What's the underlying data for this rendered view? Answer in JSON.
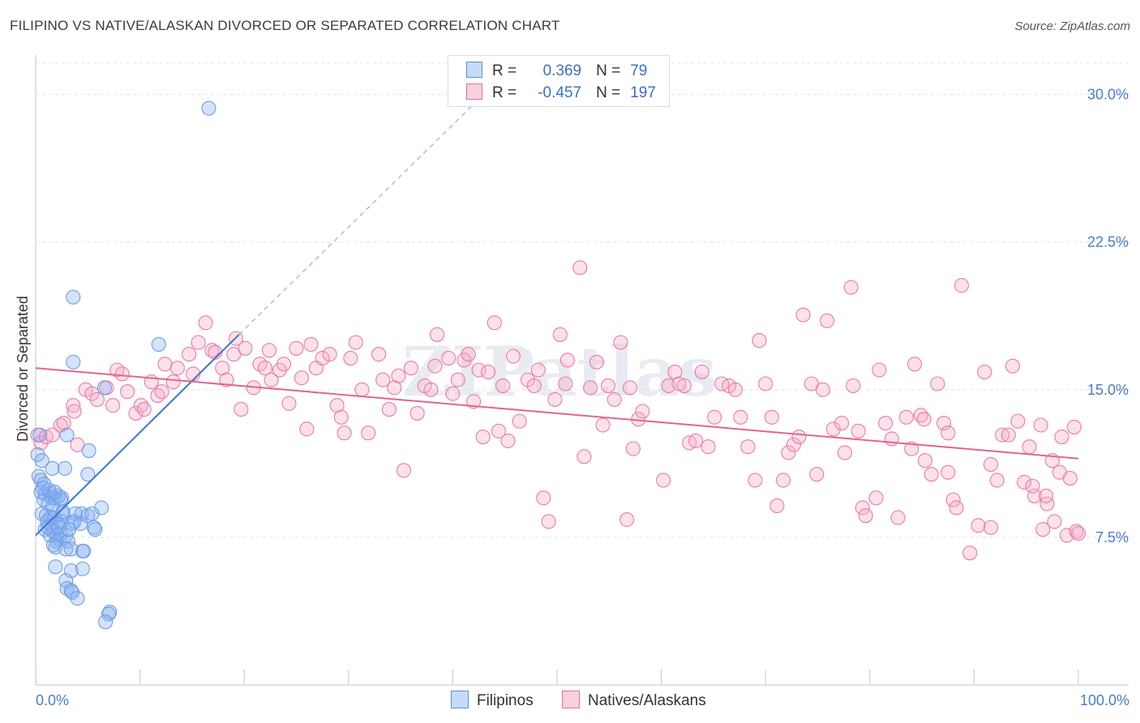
{
  "title": "FILIPINO VS NATIVE/ALASKAN DIVORCED OR SEPARATED CORRELATION CHART",
  "source": "Source: ZipAtlas.com",
  "watermark": "ZIPatlas",
  "legend": {
    "rows": [
      {
        "r_label": "R =",
        "r_value": "0.369",
        "n_label": "N =",
        "n_value": "79",
        "color": "#a9c8f5",
        "border": "#5b8fe0"
      },
      {
        "r_label": "R =",
        "r_value": "-0.457",
        "n_label": "N =",
        "n_value": "197",
        "color": "#f7bcd0",
        "border": "#e46d98"
      }
    ]
  },
  "bottom_legend": [
    {
      "label": "Filipinos",
      "color": "#a9c8f5",
      "border": "#5b8fe0"
    },
    {
      "label": "Natives/Alaskans",
      "color": "#f7bcd0",
      "border": "#e46d98"
    }
  ],
  "chart_data": {
    "type": "scatter",
    "title": "FILIPINO VS NATIVE/ALASKAN DIVORCED OR SEPARATED CORRELATION CHART",
    "xlabel": "",
    "ylabel": "Divorced or Separated",
    "xlim": [
      0,
      100
    ],
    "ylim": [
      0,
      32
    ],
    "x_tick_labels": [
      "0.0%",
      "100.0%"
    ],
    "y_ticks": [
      7.5,
      15.0,
      22.5,
      30.0
    ],
    "y_tick_labels": [
      "7.5%",
      "15.0%",
      "22.5%",
      "30.0%"
    ],
    "grid": true,
    "legend_position": "top-center",
    "series": [
      {
        "name": "Filipinos",
        "color": "#6f9ee8",
        "fill": "rgba(135,176,240,0.35)",
        "trend": {
          "x": [
            0,
            19.5
          ],
          "y": [
            7.6,
            17.8
          ],
          "dashed_to": [
            42,
            29.5
          ]
        },
        "points": [
          [
            16.6,
            29.3
          ],
          [
            3.6,
            19.7
          ],
          [
            3.6,
            16.4
          ],
          [
            11.8,
            17.3
          ],
          [
            6.6,
            15.1
          ],
          [
            0.4,
            12.7
          ],
          [
            3.0,
            12.7
          ],
          [
            5.1,
            11.9
          ],
          [
            0.2,
            11.7
          ],
          [
            0.6,
            11.4
          ],
          [
            1.6,
            11.0
          ],
          [
            2.8,
            11.0
          ],
          [
            0.3,
            10.6
          ],
          [
            0.5,
            10.4
          ],
          [
            5.0,
            10.7
          ],
          [
            0.8,
            10.2
          ],
          [
            0.5,
            9.8
          ],
          [
            0.9,
            9.7
          ],
          [
            1.4,
            9.7
          ],
          [
            0.8,
            9.4
          ],
          [
            1.6,
            9.5
          ],
          [
            1.9,
            9.5
          ],
          [
            2.2,
            9.6
          ],
          [
            2.5,
            9.5
          ],
          [
            2.4,
            9.4
          ],
          [
            1.2,
            9.2
          ],
          [
            1.6,
            9.0
          ],
          [
            6.3,
            9.0
          ],
          [
            0.6,
            8.7
          ],
          [
            1.0,
            8.6
          ],
          [
            1.4,
            8.5
          ],
          [
            1.8,
            8.5
          ],
          [
            2.6,
            8.7
          ],
          [
            3.8,
            8.7
          ],
          [
            4.4,
            8.7
          ],
          [
            5.0,
            8.6
          ],
          [
            5.4,
            8.7
          ],
          [
            2.1,
            8.2
          ],
          [
            2.5,
            8.3
          ],
          [
            3.5,
            8.2
          ],
          [
            1.1,
            8.3
          ],
          [
            1.5,
            8.1
          ],
          [
            0.9,
            7.9
          ],
          [
            1.7,
            7.8
          ],
          [
            1.4,
            7.6
          ],
          [
            2.0,
            7.6
          ],
          [
            2.4,
            7.7
          ],
          [
            2.3,
            7.4
          ],
          [
            2.0,
            7.3
          ],
          [
            2.9,
            7.6
          ],
          [
            3.1,
            7.3
          ],
          [
            3.7,
            8.3
          ],
          [
            4.3,
            8.2
          ],
          [
            5.6,
            8.0
          ],
          [
            5.7,
            7.9
          ],
          [
            1.7,
            7.1
          ],
          [
            1.9,
            7.0
          ],
          [
            2.9,
            6.9
          ],
          [
            4.5,
            6.8
          ],
          [
            4.6,
            6.8
          ],
          [
            3.4,
            6.9
          ],
          [
            1.9,
            6.0
          ],
          [
            3.4,
            5.8
          ],
          [
            4.5,
            5.9
          ],
          [
            2.9,
            5.3
          ],
          [
            3.0,
            4.9
          ],
          [
            3.4,
            4.8
          ],
          [
            4.0,
            4.4
          ],
          [
            3.5,
            4.7
          ],
          [
            7.1,
            3.7
          ],
          [
            7.0,
            3.6
          ],
          [
            6.7,
            3.2
          ],
          [
            1.3,
            9.9
          ],
          [
            2.6,
            8.8
          ],
          [
            0.7,
            10.0
          ],
          [
            1.2,
            8.0
          ],
          [
            2.2,
            8.0
          ],
          [
            3.2,
            7.9
          ],
          [
            1.8,
            9.8
          ]
        ]
      },
      {
        "name": "Natives/Alaskans",
        "color": "#ec7aa2",
        "fill": "rgba(247,170,198,0.35)",
        "trend": {
          "x": [
            0,
            100
          ],
          "y": [
            16.1,
            11.5
          ]
        },
        "points": [
          [
            0.2,
            12.7
          ],
          [
            0.5,
            12.3
          ],
          [
            1.0,
            12.6
          ],
          [
            1.6,
            12.7
          ],
          [
            2.4,
            13.2
          ],
          [
            2.7,
            13.3
          ],
          [
            3.6,
            14.2
          ],
          [
            3.7,
            13.9
          ],
          [
            4.8,
            15.0
          ],
          [
            5.4,
            14.8
          ],
          [
            5.9,
            14.5
          ],
          [
            4.0,
            12.2
          ],
          [
            6.8,
            15.1
          ],
          [
            7.4,
            14.2
          ],
          [
            7.8,
            16.0
          ],
          [
            8.3,
            15.8
          ],
          [
            8.8,
            14.9
          ],
          [
            9.6,
            13.8
          ],
          [
            10.1,
            14.2
          ],
          [
            10.4,
            14.0
          ],
          [
            11.1,
            15.4
          ],
          [
            11.7,
            14.7
          ],
          [
            12.1,
            14.9
          ],
          [
            12.4,
            16.3
          ],
          [
            13.2,
            15.4
          ],
          [
            13.6,
            16.1
          ],
          [
            14.7,
            16.8
          ],
          [
            15.1,
            15.8
          ],
          [
            15.6,
            17.4
          ],
          [
            16.3,
            18.4
          ],
          [
            16.9,
            17.0
          ],
          [
            17.2,
            16.9
          ],
          [
            17.9,
            16.1
          ],
          [
            18.3,
            15.5
          ],
          [
            19.2,
            17.6
          ],
          [
            19.7,
            14.0
          ],
          [
            19.0,
            16.8
          ],
          [
            20.1,
            17.1
          ],
          [
            20.9,
            15.1
          ],
          [
            21.5,
            16.3
          ],
          [
            22.0,
            16.1
          ],
          [
            22.6,
            15.5
          ],
          [
            22.4,
            17.0
          ],
          [
            23.4,
            16.0
          ],
          [
            23.8,
            16.3
          ],
          [
            24.3,
            14.3
          ],
          [
            25.0,
            17.1
          ],
          [
            25.5,
            15.6
          ],
          [
            26.0,
            13.0
          ],
          [
            26.4,
            17.3
          ],
          [
            26.9,
            16.1
          ],
          [
            27.5,
            16.6
          ],
          [
            28.2,
            16.8
          ],
          [
            28.9,
            14.2
          ],
          [
            29.3,
            13.6
          ],
          [
            29.6,
            12.8
          ],
          [
            30.2,
            16.6
          ],
          [
            30.7,
            17.4
          ],
          [
            31.3,
            15.0
          ],
          [
            31.9,
            12.8
          ],
          [
            32.9,
            16.8
          ],
          [
            33.3,
            15.5
          ],
          [
            33.9,
            14.0
          ],
          [
            34.4,
            15.1
          ],
          [
            34.8,
            15.7
          ],
          [
            35.3,
            10.9
          ],
          [
            36.0,
            16.1
          ],
          [
            36.6,
            13.8
          ],
          [
            37.3,
            15.2
          ],
          [
            37.9,
            15.0
          ],
          [
            38.3,
            16.2
          ],
          [
            38.5,
            17.8
          ],
          [
            39.6,
            16.6
          ],
          [
            40.0,
            14.8
          ],
          [
            40.5,
            15.5
          ],
          [
            41.1,
            16.5
          ],
          [
            41.5,
            16.8
          ],
          [
            42.0,
            14.4
          ],
          [
            42.5,
            16.0
          ],
          [
            42.9,
            12.6
          ],
          [
            43.4,
            15.9
          ],
          [
            44.0,
            18.4
          ],
          [
            44.4,
            12.9
          ],
          [
            44.8,
            15.2
          ],
          [
            45.3,
            12.4
          ],
          [
            45.8,
            16.7
          ],
          [
            46.4,
            13.4
          ],
          [
            47.2,
            15.5
          ],
          [
            47.8,
            15.2
          ],
          [
            48.2,
            16.0
          ],
          [
            48.7,
            9.5
          ],
          [
            49.2,
            8.3
          ],
          [
            49.8,
            14.5
          ],
          [
            50.3,
            17.8
          ],
          [
            50.8,
            15.3
          ],
          [
            51.0,
            16.5
          ],
          [
            52.2,
            21.2
          ],
          [
            52.6,
            11.6
          ],
          [
            53.2,
            15.1
          ],
          [
            53.8,
            16.4
          ],
          [
            54.4,
            13.2
          ],
          [
            54.9,
            15.2
          ],
          [
            55.5,
            14.5
          ],
          [
            56.1,
            17.4
          ],
          [
            56.7,
            8.4
          ],
          [
            57.0,
            15.1
          ],
          [
            57.3,
            12.0
          ],
          [
            57.8,
            13.5
          ],
          [
            58.2,
            13.9
          ],
          [
            60.2,
            10.4
          ],
          [
            60.7,
            15.2
          ],
          [
            61.3,
            15.9
          ],
          [
            61.7,
            15.3
          ],
          [
            62.2,
            15.2
          ],
          [
            62.7,
            12.3
          ],
          [
            63.3,
            12.4
          ],
          [
            63.9,
            15.9
          ],
          [
            64.5,
            12.1
          ],
          [
            65.1,
            13.6
          ],
          [
            65.8,
            15.3
          ],
          [
            66.5,
            15.2
          ],
          [
            67.1,
            15.0
          ],
          [
            67.6,
            13.6
          ],
          [
            68.3,
            12.1
          ],
          [
            69.0,
            10.4
          ],
          [
            69.4,
            17.5
          ],
          [
            70.0,
            15.3
          ],
          [
            70.6,
            13.6
          ],
          [
            71.1,
            9.1
          ],
          [
            71.7,
            10.4
          ],
          [
            72.2,
            11.8
          ],
          [
            72.7,
            12.2
          ],
          [
            73.2,
            12.6
          ],
          [
            73.6,
            18.8
          ],
          [
            74.4,
            15.3
          ],
          [
            74.9,
            10.7
          ],
          [
            75.5,
            15.0
          ],
          [
            75.9,
            18.5
          ],
          [
            76.5,
            13.0
          ],
          [
            77.3,
            13.3
          ],
          [
            77.6,
            11.8
          ],
          [
            78.2,
            20.2
          ],
          [
            78.4,
            15.2
          ],
          [
            78.9,
            12.9
          ],
          [
            79.3,
            9.0
          ],
          [
            79.6,
            8.6
          ],
          [
            80.6,
            9.5
          ],
          [
            80.9,
            16.0
          ],
          [
            81.5,
            13.3
          ],
          [
            82.1,
            12.5
          ],
          [
            82.7,
            8.5
          ],
          [
            83.5,
            13.6
          ],
          [
            84.3,
            16.3
          ],
          [
            84.9,
            13.7
          ],
          [
            85.3,
            11.4
          ],
          [
            85.9,
            10.7
          ],
          [
            86.5,
            15.3
          ],
          [
            87.1,
            13.3
          ],
          [
            87.5,
            12.8
          ],
          [
            88.0,
            9.4
          ],
          [
            88.8,
            20.3
          ],
          [
            89.6,
            6.7
          ],
          [
            90.4,
            8.1
          ],
          [
            91.0,
            15.9
          ],
          [
            91.6,
            11.2
          ],
          [
            92.2,
            10.4
          ],
          [
            92.7,
            12.7
          ],
          [
            93.3,
            12.7
          ],
          [
            93.7,
            16.2
          ],
          [
            94.2,
            13.4
          ],
          [
            94.8,
            10.3
          ],
          [
            95.3,
            12.1
          ],
          [
            95.8,
            9.6
          ],
          [
            96.4,
            13.2
          ],
          [
            97.0,
            9.2
          ],
          [
            97.5,
            11.4
          ],
          [
            97.7,
            8.3
          ],
          [
            98.4,
            12.6
          ],
          [
            98.9,
            7.6
          ],
          [
            99.6,
            13.1
          ],
          [
            99.8,
            7.8
          ],
          [
            100.0,
            7.7
          ],
          [
            87.5,
            10.8
          ],
          [
            88.3,
            9.0
          ],
          [
            85.2,
            13.5
          ],
          [
            84.0,
            12.0
          ],
          [
            91.6,
            8.0
          ],
          [
            95.6,
            10.1
          ],
          [
            96.6,
            7.9
          ],
          [
            96.9,
            9.6
          ],
          [
            98.2,
            10.8
          ],
          [
            99.2,
            10.5
          ]
        ]
      }
    ]
  }
}
